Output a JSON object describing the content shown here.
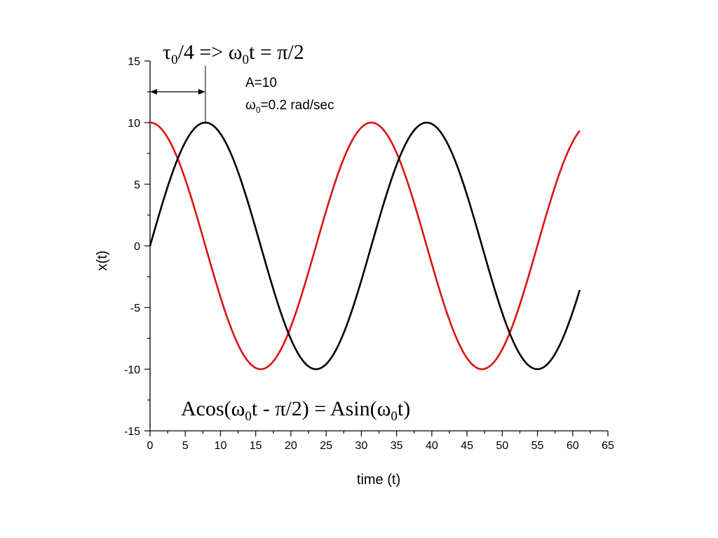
{
  "chart_data": {
    "type": "line",
    "xlabel": "time (t)",
    "ylabel": "x(t)",
    "xlim": [
      0,
      65
    ],
    "ylim": [
      -15,
      15
    ],
    "x_ticks": [
      0,
      5,
      10,
      15,
      20,
      25,
      30,
      35,
      40,
      45,
      50,
      55,
      60,
      65
    ],
    "y_ticks": [
      -15,
      -10,
      -5,
      0,
      5,
      10,
      15
    ],
    "grid": false,
    "legend": "none",
    "series": [
      {
        "color": "#dd1111",
        "function": "10*cos(0.2*t)",
        "t_range": [
          0,
          61
        ]
      },
      {
        "color": "#000000",
        "function": "10*sin(0.2*t)",
        "t_range": [
          0,
          61
        ]
      }
    ],
    "annotations": {
      "top": {
        "p1": "τ",
        "p2": "0",
        "p3": "/4 => ω",
        "p4": "0",
        "p5": "t = π/2"
      },
      "params": {
        "line1": "A=10",
        "omega": "ω",
        "omega_sub": "0",
        "omega_rest": "=0.2 rad/sec"
      },
      "identity": {
        "p1": "Acos(ω",
        "p2": "0",
        "p3": "t - π/2) = Asin(ω",
        "p4": "0",
        "p5": "t)"
      },
      "quarter_period_marker": {
        "from_t": 0,
        "to_t": 7.85,
        "at_x": 12.5
      }
    }
  }
}
